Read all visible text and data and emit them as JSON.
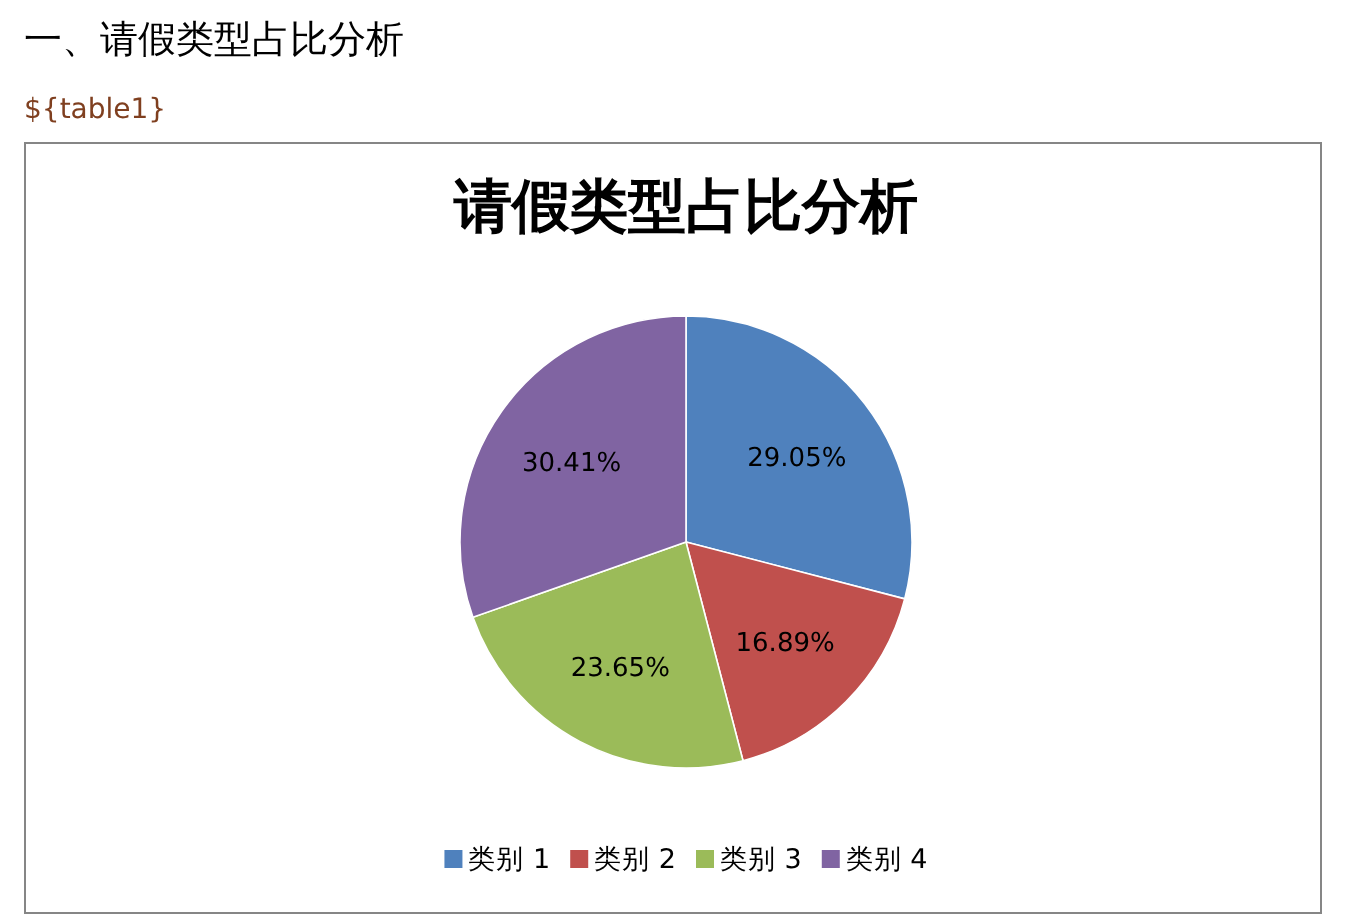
{
  "chart_data": {
    "type": "pie",
    "title": "请假类型占比分析",
    "annotations": [
      "一、请假类型占比分析",
      "${table1}"
    ],
    "categories": [
      "类别 1",
      "类别 2",
      "类别 3",
      "类别 4"
    ],
    "values": [
      29.05,
      16.89,
      23.65,
      30.41
    ],
    "colors": [
      "#4f81bd",
      "#c0504d",
      "#9bbb59",
      "#8064a2"
    ],
    "value_labels": [
      "29.05%",
      "16.89%",
      "23.65%",
      "30.41%"
    ],
    "legend": "bottom"
  }
}
